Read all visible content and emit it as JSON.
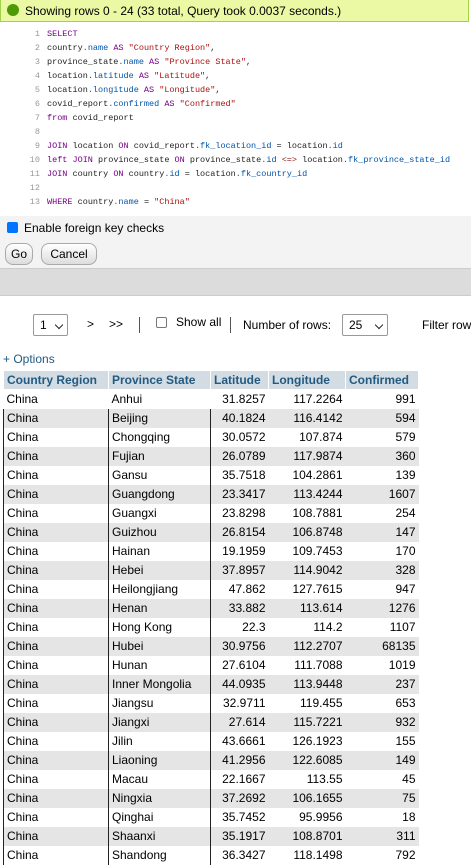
{
  "status": "Showing rows 0 - 24 (33 total, Query took 0.0037 seconds.)",
  "sql": {
    "lines": [
      {
        "n": 1,
        "tokens": [
          [
            "SELECT",
            "kw"
          ]
        ]
      },
      {
        "n": 2,
        "tokens": [
          [
            "country",
            "plain"
          ],
          [
            ".name",
            "prop"
          ],
          [
            " AS ",
            "kw"
          ],
          [
            "\"Country Region\"",
            "str"
          ],
          [
            ",",
            "plain"
          ]
        ]
      },
      {
        "n": 3,
        "tokens": [
          [
            "province_state",
            "plain"
          ],
          [
            ".name",
            "prop"
          ],
          [
            " AS ",
            "kw"
          ],
          [
            "\"Province State\"",
            "str"
          ],
          [
            ",",
            "plain"
          ]
        ]
      },
      {
        "n": 4,
        "tokens": [
          [
            "location",
            "plain"
          ],
          [
            ".latitude",
            "prop"
          ],
          [
            " AS ",
            "kw"
          ],
          [
            "\"Latitude\"",
            "str"
          ],
          [
            ",",
            "plain"
          ]
        ]
      },
      {
        "n": 5,
        "tokens": [
          [
            "location",
            "plain"
          ],
          [
            ".longitude",
            "prop"
          ],
          [
            " AS ",
            "kw"
          ],
          [
            "\"Longitude\"",
            "str"
          ],
          [
            ",",
            "plain"
          ]
        ]
      },
      {
        "n": 6,
        "tokens": [
          [
            "covid_report",
            "plain"
          ],
          [
            ".confirmed",
            "prop"
          ],
          [
            " AS ",
            "kw"
          ],
          [
            "\"Confirmed\"",
            "str"
          ]
        ]
      },
      {
        "n": 7,
        "tokens": [
          [
            "from",
            "kw"
          ],
          [
            " covid_report",
            "plain"
          ]
        ]
      },
      {
        "n": 8,
        "tokens": []
      },
      {
        "n": 9,
        "tokens": [
          [
            "JOIN",
            "kw"
          ],
          [
            " location ",
            "plain"
          ],
          [
            "ON",
            "kw"
          ],
          [
            " covid_report",
            "plain"
          ],
          [
            ".fk_location_id",
            "prop"
          ],
          [
            " = location",
            "plain"
          ],
          [
            ".id",
            "prop"
          ]
        ]
      },
      {
        "n": 10,
        "tokens": [
          [
            "left JOIN",
            "kw"
          ],
          [
            " province_state ",
            "plain"
          ],
          [
            "ON",
            "kw"
          ],
          [
            " province_state",
            "plain"
          ],
          [
            ".id",
            "prop"
          ],
          [
            " ",
            "plain"
          ],
          [
            "<=>",
            "op"
          ],
          [
            " location",
            "plain"
          ],
          [
            ".fk_province_state_id",
            "prop"
          ]
        ]
      },
      {
        "n": 11,
        "tokens": [
          [
            "JOIN",
            "kw"
          ],
          [
            " country ",
            "plain"
          ],
          [
            "ON",
            "kw"
          ],
          [
            " country",
            "plain"
          ],
          [
            ".id",
            "prop"
          ],
          [
            " = location",
            "plain"
          ],
          [
            ".fk_country_id",
            "prop"
          ]
        ]
      },
      {
        "n": 12,
        "tokens": []
      },
      {
        "n": 13,
        "tokens": [
          [
            "WHERE",
            "kw"
          ],
          [
            " country",
            "plain"
          ],
          [
            ".name",
            "prop"
          ],
          [
            " = ",
            "plain"
          ],
          [
            "\"China\"",
            "str"
          ]
        ]
      }
    ]
  },
  "foreign_key_checks": {
    "label": "Enable foreign key checks",
    "checked": true
  },
  "buttons": [
    "Go",
    "Cancel"
  ],
  "nav": {
    "page": 1,
    "next": ">",
    "last": ">>",
    "show_all": "Show all",
    "rows_label": "Number of rows:",
    "rows": 25,
    "filter": "Filter row"
  },
  "options": "+ Options",
  "table": {
    "columns": [
      "Country Region",
      "Province State",
      "Latitude",
      "Longitude",
      "Confirmed"
    ],
    "rows": [
      [
        "China",
        "Anhui",
        31.8257,
        117.2264,
        991
      ],
      [
        "China",
        "Beijing",
        40.1824,
        116.4142,
        594
      ],
      [
        "China",
        "Chongqing",
        30.0572,
        107.874,
        579
      ],
      [
        "China",
        "Fujian",
        26.0789,
        117.9874,
        360
      ],
      [
        "China",
        "Gansu",
        35.7518,
        104.2861,
        139
      ],
      [
        "China",
        "Guangdong",
        23.3417,
        113.4244,
        1607
      ],
      [
        "China",
        "Guangxi",
        23.8298,
        108.7881,
        254
      ],
      [
        "China",
        "Guizhou",
        26.8154,
        106.8748,
        147
      ],
      [
        "China",
        "Hainan",
        19.1959,
        109.7453,
        170
      ],
      [
        "China",
        "Hebei",
        37.8957,
        114.9042,
        328
      ],
      [
        "China",
        "Heilongjiang",
        47.862,
        127.7615,
        947
      ],
      [
        "China",
        "Henan",
        33.882,
        113.614,
        1276
      ],
      [
        "China",
        "Hong Kong",
        22.3,
        114.2,
        1107
      ],
      [
        "China",
        "Hubei",
        30.9756,
        112.2707,
        68135
      ],
      [
        "China",
        "Hunan",
        27.6104,
        111.7088,
        1019
      ],
      [
        "China",
        "Inner Mongolia",
        44.0935,
        113.9448,
        237
      ],
      [
        "China",
        "Jiangsu",
        32.9711,
        119.455,
        653
      ],
      [
        "China",
        "Jiangxi",
        27.614,
        115.7221,
        932
      ],
      [
        "China",
        "Jilin",
        43.6661,
        126.1923,
        155
      ],
      [
        "China",
        "Liaoning",
        41.2956,
        122.6085,
        149
      ],
      [
        "China",
        "Macau",
        22.1667,
        113.55,
        45
      ],
      [
        "China",
        "Ningxia",
        37.2692,
        106.1655,
        75
      ],
      [
        "China",
        "Qinghai",
        35.7452,
        95.9956,
        18
      ],
      [
        "China",
        "Shaanxi",
        35.1917,
        108.8701,
        311
      ],
      [
        "China",
        "Shandong",
        36.3427,
        118.1498,
        792
      ]
    ]
  }
}
